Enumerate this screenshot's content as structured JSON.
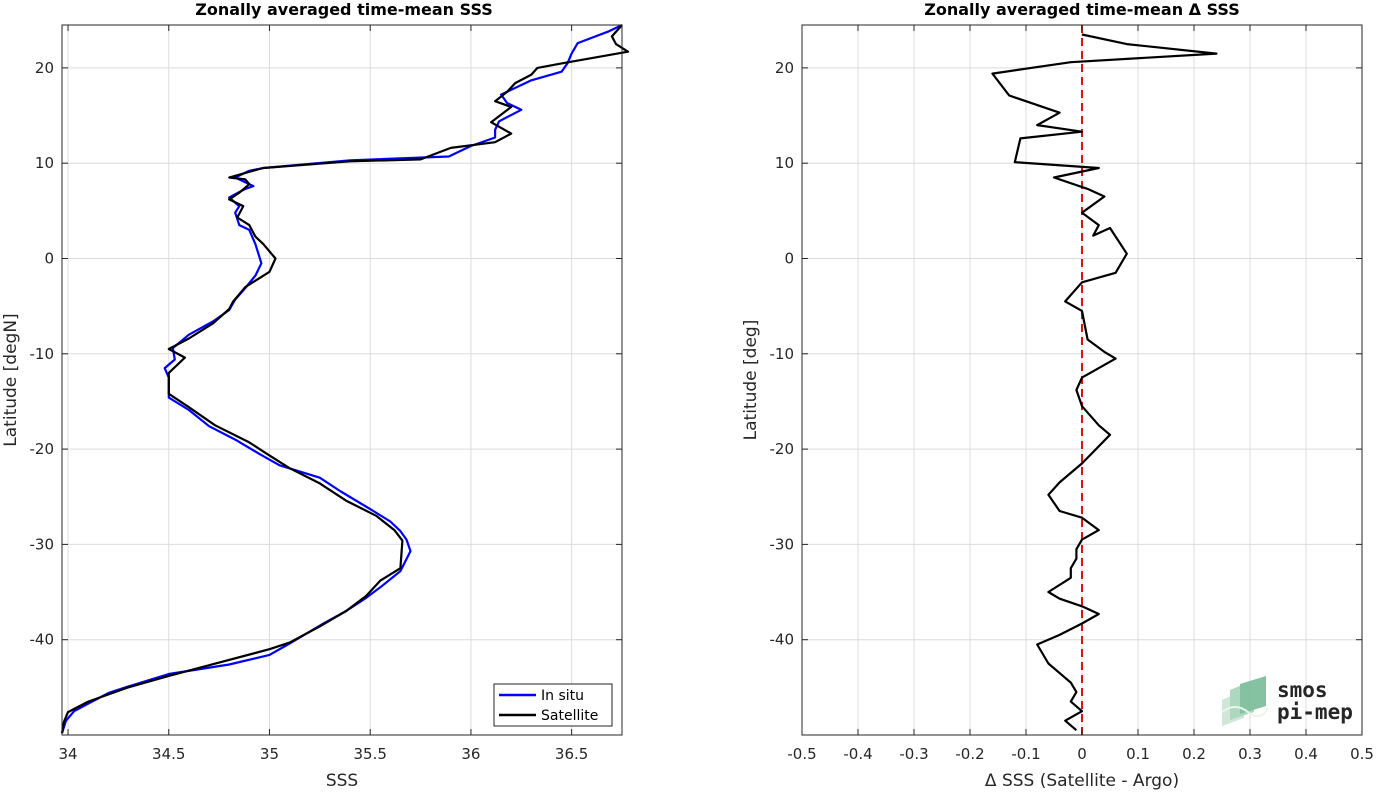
{
  "chart_data": [
    {
      "type": "line",
      "title": "Zonally averaged time-mean SSS",
      "xlabel": "SSS",
      "ylabel": "Latitude [degN]",
      "xlim": [
        33.97,
        36.75
      ],
      "ylim": [
        -50,
        24.5
      ],
      "xticks": [
        "34",
        "34.5",
        "35",
        "35.5",
        "36",
        "36.5"
      ],
      "xtick_values": [
        34,
        34.5,
        35,
        35.5,
        36,
        36.5
      ],
      "yticks": [
        "20",
        "10",
        "0",
        "-10",
        "-20",
        "-30",
        "-40"
      ],
      "ytick_values": [
        20,
        10,
        0,
        -10,
        -20,
        -30,
        -40
      ],
      "grid": true,
      "legend": "bottom-right",
      "series": [
        {
          "name": "In situ",
          "color": "#0000ff",
          "points": [
            [
              36.75,
              24.5
            ],
            [
              36.68,
              23.8
            ],
            [
              36.53,
              22.6
            ],
            [
              36.5,
              21.5
            ],
            [
              36.48,
              20.5
            ],
            [
              36.45,
              19.6
            ],
            [
              36.3,
              18.7
            ],
            [
              36.15,
              17.2
            ],
            [
              36.18,
              16.3
            ],
            [
              36.25,
              15.6
            ],
            [
              36.14,
              14.4
            ],
            [
              36.12,
              13.5
            ],
            [
              36.12,
              12.7
            ],
            [
              36.0,
              11.8
            ],
            [
              35.89,
              10.7
            ],
            [
              35.4,
              10.3
            ],
            [
              34.97,
              9.5
            ],
            [
              34.9,
              9.2
            ],
            [
              34.83,
              8.5
            ],
            [
              34.92,
              7.6
            ],
            [
              34.88,
              7.3
            ],
            [
              34.8,
              6.4
            ],
            [
              34.85,
              5.5
            ],
            [
              34.83,
              4.8
            ],
            [
              34.85,
              3.5
            ],
            [
              34.9,
              3.0
            ],
            [
              34.93,
              1.5
            ],
            [
              34.96,
              -0.5
            ],
            [
              34.93,
              -1.8
            ],
            [
              34.88,
              -3.1
            ],
            [
              34.83,
              -4.3
            ],
            [
              34.8,
              -5.4
            ],
            [
              34.72,
              -6.6
            ],
            [
              34.6,
              -8.0
            ],
            [
              34.52,
              -9.4
            ],
            [
              34.53,
              -10.6
            ],
            [
              34.48,
              -11.5
            ],
            [
              34.5,
              -12.5
            ],
            [
              34.5,
              -14.6
            ],
            [
              34.6,
              -15.9
            ],
            [
              34.7,
              -17.6
            ],
            [
              34.83,
              -19.0
            ],
            [
              34.95,
              -20.5
            ],
            [
              35.05,
              -21.7
            ],
            [
              35.25,
              -23.0
            ],
            [
              35.35,
              -24.4
            ],
            [
              35.5,
              -26.3
            ],
            [
              35.6,
              -27.6
            ],
            [
              35.65,
              -28.6
            ],
            [
              35.68,
              -29.5
            ],
            [
              35.7,
              -30.7
            ],
            [
              35.65,
              -32.8
            ],
            [
              35.55,
              -34.5
            ],
            [
              35.48,
              -35.6
            ],
            [
              35.38,
              -37.0
            ],
            [
              35.26,
              -38.4
            ],
            [
              35.1,
              -40.4
            ],
            [
              35.0,
              -41.6
            ],
            [
              34.8,
              -42.6
            ],
            [
              34.5,
              -43.6
            ],
            [
              34.3,
              -44.9
            ],
            [
              34.2,
              -45.6
            ],
            [
              34.1,
              -46.7
            ],
            [
              34.03,
              -47.5
            ],
            [
              33.99,
              -48.5
            ],
            [
              33.97,
              -49.8
            ]
          ]
        },
        {
          "name": "Satellite",
          "color": "#000000",
          "points": [
            [
              36.75,
              24.5
            ],
            [
              36.7,
              23.3
            ],
            [
              36.72,
              22.5
            ],
            [
              36.78,
              21.7
            ],
            [
              36.46,
              20.5
            ],
            [
              36.33,
              20.0
            ],
            [
              36.3,
              19.3
            ],
            [
              36.22,
              18.4
            ],
            [
              36.18,
              17.5
            ],
            [
              36.12,
              16.5
            ],
            [
              36.2,
              15.9
            ],
            [
              36.1,
              14.3
            ],
            [
              36.2,
              13.1
            ],
            [
              36.12,
              12.2
            ],
            [
              35.9,
              11.6
            ],
            [
              35.75,
              10.4
            ],
            [
              35.4,
              10.2
            ],
            [
              34.97,
              9.5
            ],
            [
              34.9,
              9.1
            ],
            [
              34.8,
              8.5
            ],
            [
              34.88,
              8.3
            ],
            [
              34.9,
              7.8
            ],
            [
              34.85,
              6.9
            ],
            [
              34.8,
              6.2
            ],
            [
              34.87,
              5.5
            ],
            [
              34.84,
              4.3
            ],
            [
              34.9,
              3.5
            ],
            [
              34.93,
              2.3
            ],
            [
              34.97,
              1.5
            ],
            [
              35.03,
              0.0
            ],
            [
              35.0,
              -1.4
            ],
            [
              34.88,
              -3.0
            ],
            [
              34.82,
              -4.5
            ],
            [
              34.8,
              -5.3
            ],
            [
              34.72,
              -6.8
            ],
            [
              34.6,
              -8.4
            ],
            [
              34.5,
              -9.5
            ],
            [
              34.58,
              -10.4
            ],
            [
              34.5,
              -12.0
            ],
            [
              34.5,
              -14.2
            ],
            [
              34.6,
              -15.6
            ],
            [
              34.73,
              -17.5
            ],
            [
              34.9,
              -19.3
            ],
            [
              34.98,
              -20.4
            ],
            [
              35.1,
              -22.0
            ],
            [
              35.25,
              -23.6
            ],
            [
              35.38,
              -25.4
            ],
            [
              35.53,
              -27.0
            ],
            [
              35.62,
              -28.5
            ],
            [
              35.66,
              -29.6
            ],
            [
              35.65,
              -32.5
            ],
            [
              35.55,
              -33.8
            ],
            [
              35.48,
              -35.4
            ],
            [
              35.38,
              -37.0
            ],
            [
              35.25,
              -38.6
            ],
            [
              35.1,
              -40.3
            ],
            [
              35.0,
              -41.0
            ],
            [
              34.75,
              -42.4
            ],
            [
              34.5,
              -43.8
            ],
            [
              34.3,
              -45.0
            ],
            [
              34.1,
              -46.5
            ],
            [
              34.0,
              -47.6
            ],
            [
              33.98,
              -48.6
            ],
            [
              33.97,
              -49.8
            ]
          ]
        }
      ]
    },
    {
      "type": "line",
      "title": "Zonally averaged time-mean Δ SSS",
      "xlabel": "Δ SSS (Satellite - Argo)",
      "ylabel": "Latitude [deg]",
      "xlim": [
        -0.5,
        0.5
      ],
      "ylim": [
        -50,
        24.5
      ],
      "xticks": [
        "-0.5",
        "-0.4",
        "-0.3",
        "-0.2",
        "-0.1",
        "0",
        "0.1",
        "0.2",
        "0.3",
        "0.4",
        "0.5"
      ],
      "xtick_values": [
        -0.5,
        -0.4,
        -0.3,
        -0.2,
        -0.1,
        0,
        0.1,
        0.2,
        0.3,
        0.4,
        0.5
      ],
      "yticks": [
        "20",
        "10",
        "0",
        "-10",
        "-20",
        "-30",
        "-40"
      ],
      "ytick_values": [
        20,
        10,
        0,
        -10,
        -20,
        -30,
        -40
      ],
      "grid": true,
      "reference_line": {
        "x": 0,
        "color": "#dd1111",
        "style": "dashed"
      },
      "series": [
        {
          "color": "#000000",
          "points": [
            [
              0.0,
              23.5
            ],
            [
              0.08,
              22.5
            ],
            [
              0.24,
              21.5
            ],
            [
              -0.02,
              20.6
            ],
            [
              -0.16,
              19.4
            ],
            [
              -0.13,
              17.1
            ],
            [
              -0.04,
              15.3
            ],
            [
              -0.08,
              14.0
            ],
            [
              0.0,
              13.3
            ],
            [
              -0.11,
              12.6
            ],
            [
              -0.12,
              10.1
            ],
            [
              0.03,
              9.5
            ],
            [
              -0.05,
              8.5
            ],
            [
              0.01,
              7.3
            ],
            [
              0.04,
              6.5
            ],
            [
              0.0,
              4.8
            ],
            [
              0.03,
              3.5
            ],
            [
              0.02,
              2.4
            ],
            [
              0.05,
              3.2
            ],
            [
              0.08,
              0.5
            ],
            [
              0.06,
              -1.5
            ],
            [
              0.0,
              -2.5
            ],
            [
              -0.03,
              -4.5
            ],
            [
              0.0,
              -5.5
            ],
            [
              0.01,
              -8.5
            ],
            [
              0.04,
              -9.8
            ],
            [
              0.06,
              -10.5
            ],
            [
              0.0,
              -12.5
            ],
            [
              -0.01,
              -13.8
            ],
            [
              0.0,
              -15.5
            ],
            [
              0.03,
              -17.5
            ],
            [
              0.05,
              -18.5
            ],
            [
              0.02,
              -20.3
            ],
            [
              0.0,
              -21.5
            ],
            [
              -0.04,
              -23.5
            ],
            [
              -0.06,
              -24.8
            ],
            [
              -0.04,
              -26.5
            ],
            [
              0.0,
              -27.2
            ],
            [
              0.03,
              -28.5
            ],
            [
              0.0,
              -29.5
            ],
            [
              -0.01,
              -30.5
            ],
            [
              -0.01,
              -31.5
            ],
            [
              -0.02,
              -32.5
            ],
            [
              -0.02,
              -33.5
            ],
            [
              -0.06,
              -35
            ],
            [
              -0.04,
              -35.7
            ],
            [
              0.0,
              -36.5
            ],
            [
              0.03,
              -37.3
            ],
            [
              0.0,
              -38.3
            ],
            [
              -0.04,
              -39.5
            ],
            [
              -0.08,
              -40.5
            ],
            [
              -0.06,
              -42.5
            ],
            [
              -0.04,
              -43.5
            ],
            [
              -0.02,
              -44.5
            ],
            [
              -0.01,
              -45.5
            ],
            [
              -0.02,
              -46.5
            ],
            [
              0.0,
              -47.5
            ],
            [
              -0.03,
              -48.5
            ],
            [
              -0.01,
              -49.5
            ]
          ]
        }
      ]
    }
  ],
  "legend": {
    "items": [
      {
        "label": "In situ",
        "color": "#0000ff"
      },
      {
        "label": "Satellite",
        "color": "#000000"
      }
    ]
  },
  "logo": {
    "line1": "smos",
    "line2": "pi-mep",
    "color": "#5aa882"
  }
}
